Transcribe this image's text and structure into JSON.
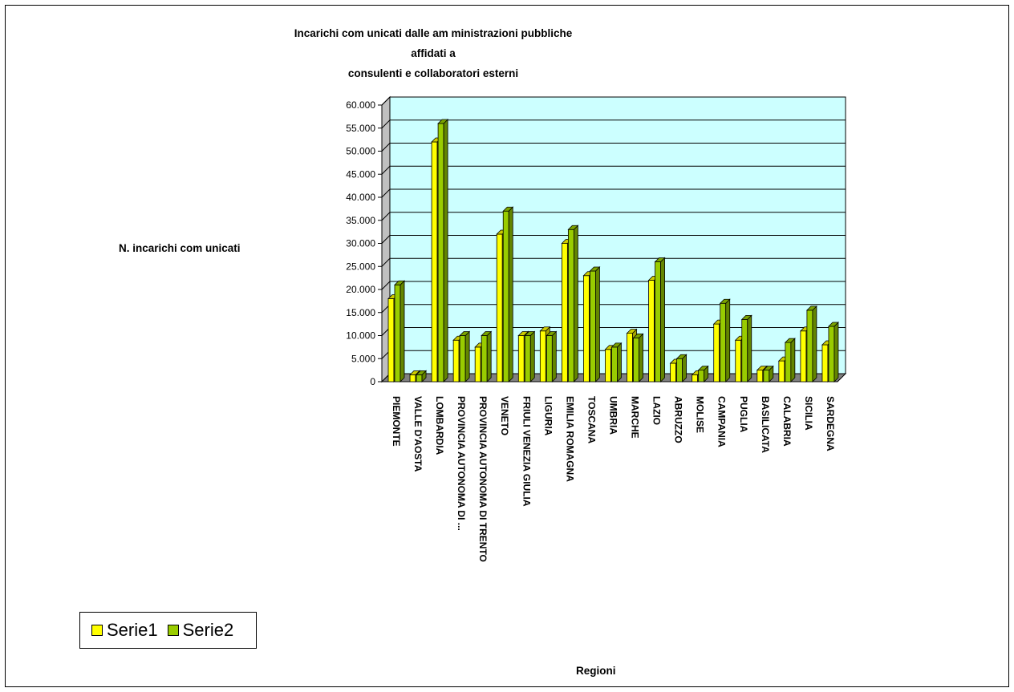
{
  "chart_data": {
    "type": "bar",
    "title_lines": [
      "Incarichi com unicati dalle am ministrazioni pubbliche",
      "affidati a",
      "consulenti e collaboratori esterni"
    ],
    "xlabel": "Regioni",
    "ylabel": "N. incarichi com unicati",
    "ylim": [
      0,
      60000
    ],
    "yticks": [
      "0",
      "5.000",
      "10.000",
      "15.000",
      "20.000",
      "25.000",
      "30.000",
      "35.000",
      "40.000",
      "45.000",
      "50.000",
      "55.000",
      "60.000"
    ],
    "categories": [
      "PIEMONTE",
      "VALLE D'AOSTA",
      "LOMBARDIA",
      "PROVINCIA AUTONOMA DI ...",
      "PROVINCIA AUTONOMA DI TRENTO",
      "VENETO",
      "FRIULI VENEZIA GIULIA",
      "LIGURIA",
      "EMILIA ROMAGNA",
      "TOSCANA",
      "UMBRIA",
      "MARCHE",
      "LAZIO",
      "ABRUZZO",
      "MOLISE",
      "CAMPANIA",
      "PUGLIA",
      "BASILICATA",
      "CALABRIA",
      "SICILIA",
      "SARDEGNA"
    ],
    "series": [
      {
        "name": "Serie1",
        "color": "#ffff00",
        "values": [
          18000,
          1500,
          52000,
          9000,
          7500,
          32000,
          10000,
          11000,
          30000,
          23000,
          7000,
          10500,
          22000,
          4000,
          1500,
          12500,
          9000,
          2500,
          4500,
          11000,
          8000
        ]
      },
      {
        "name": "Serie2",
        "color": "#99cc00",
        "values": [
          21000,
          1500,
          56000,
          10000,
          10000,
          37000,
          10000,
          10000,
          33000,
          24000,
          7500,
          9500,
          26000,
          5000,
          2500,
          17000,
          13500,
          2500,
          8500,
          15500,
          12000
        ]
      }
    ],
    "plot_background": "#ccffff",
    "grid": true,
    "legend_position": "bottom-left"
  }
}
